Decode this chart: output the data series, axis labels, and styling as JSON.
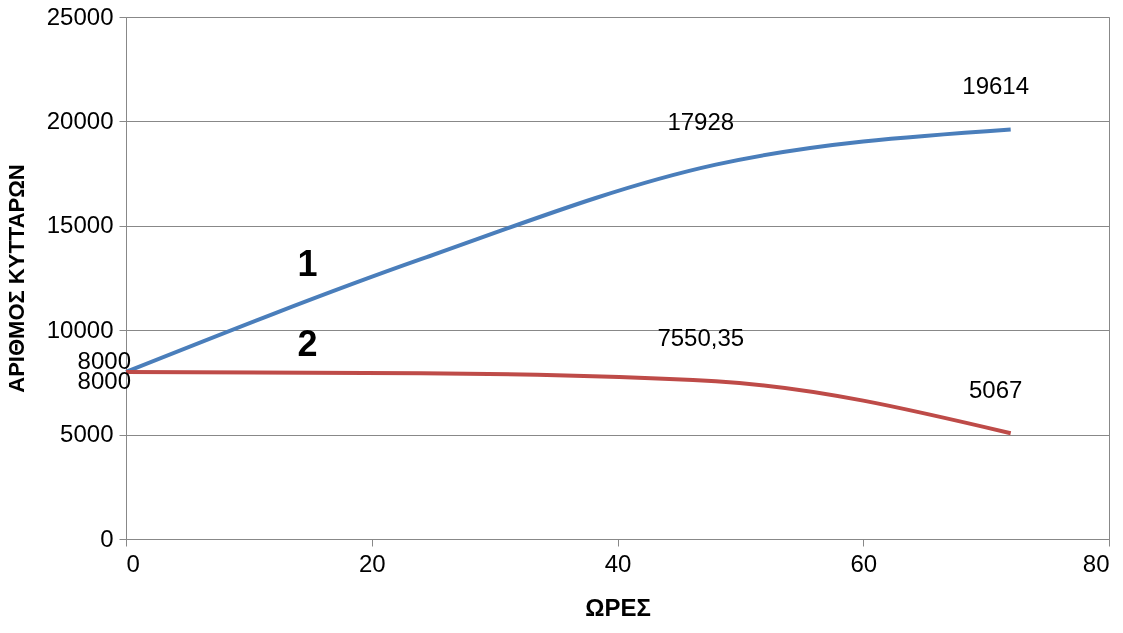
{
  "chart_data": {
    "type": "line",
    "xlabel": "ΩΡΕΣ",
    "ylabel": "ΑΡΙΘΜΟΣ ΚΥΤΤΑΡΩΝ",
    "x": [
      0,
      24,
      48,
      72
    ],
    "series": [
      {
        "name": "1",
        "color": "#4a7ebb",
        "values": [
          8000,
          13400,
          17928,
          19614
        ],
        "value_labels": [
          "8000",
          null,
          "17928",
          "19614"
        ]
      },
      {
        "name": "2",
        "color": "#be4b48",
        "values": [
          8000,
          7940,
          7550.35,
          5067
        ],
        "value_labels": [
          "8000",
          null,
          "7550,35",
          "5067"
        ]
      }
    ],
    "xlim": [
      0,
      80
    ],
    "xticks": [
      0,
      20,
      40,
      60,
      80
    ],
    "ylim": [
      0,
      25000
    ],
    "yticks": [
      0,
      5000,
      10000,
      15000,
      20000,
      25000
    ],
    "grid": "y",
    "marker": "none",
    "line_style": "solid"
  }
}
